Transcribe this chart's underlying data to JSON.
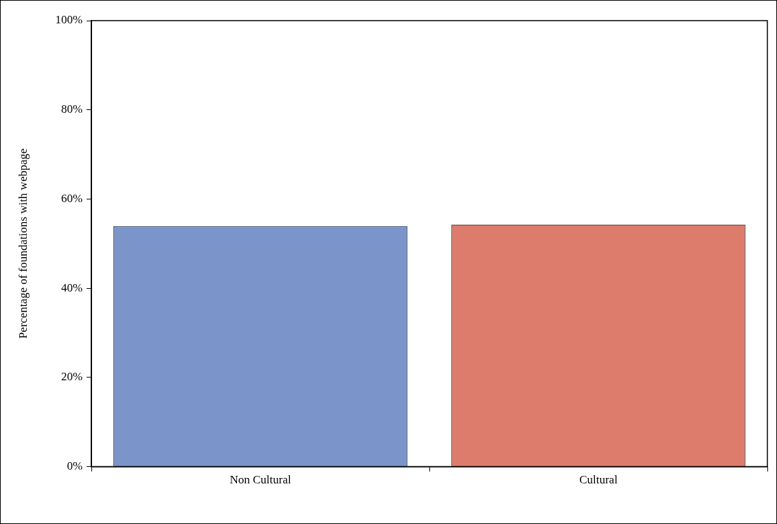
{
  "chart_data": {
    "type": "bar",
    "ylabel": "Percentage of foundations with webpage",
    "categories": [
      "Non Cultural",
      "Cultural"
    ],
    "values": [
      53.9,
      54.3
    ],
    "colors": [
      "#7b95cb",
      "#dd7b6d"
    ],
    "ylim": [
      0,
      100
    ],
    "yticks": [
      {
        "value": 0,
        "label": "0%"
      },
      {
        "value": 20,
        "label": "20%"
      },
      {
        "value": 40,
        "label": "40%"
      },
      {
        "value": 60,
        "label": "60%"
      },
      {
        "value": 80,
        "label": "80%"
      },
      {
        "value": 100,
        "label": "100%"
      }
    ],
    "grid": false,
    "legend": false
  }
}
